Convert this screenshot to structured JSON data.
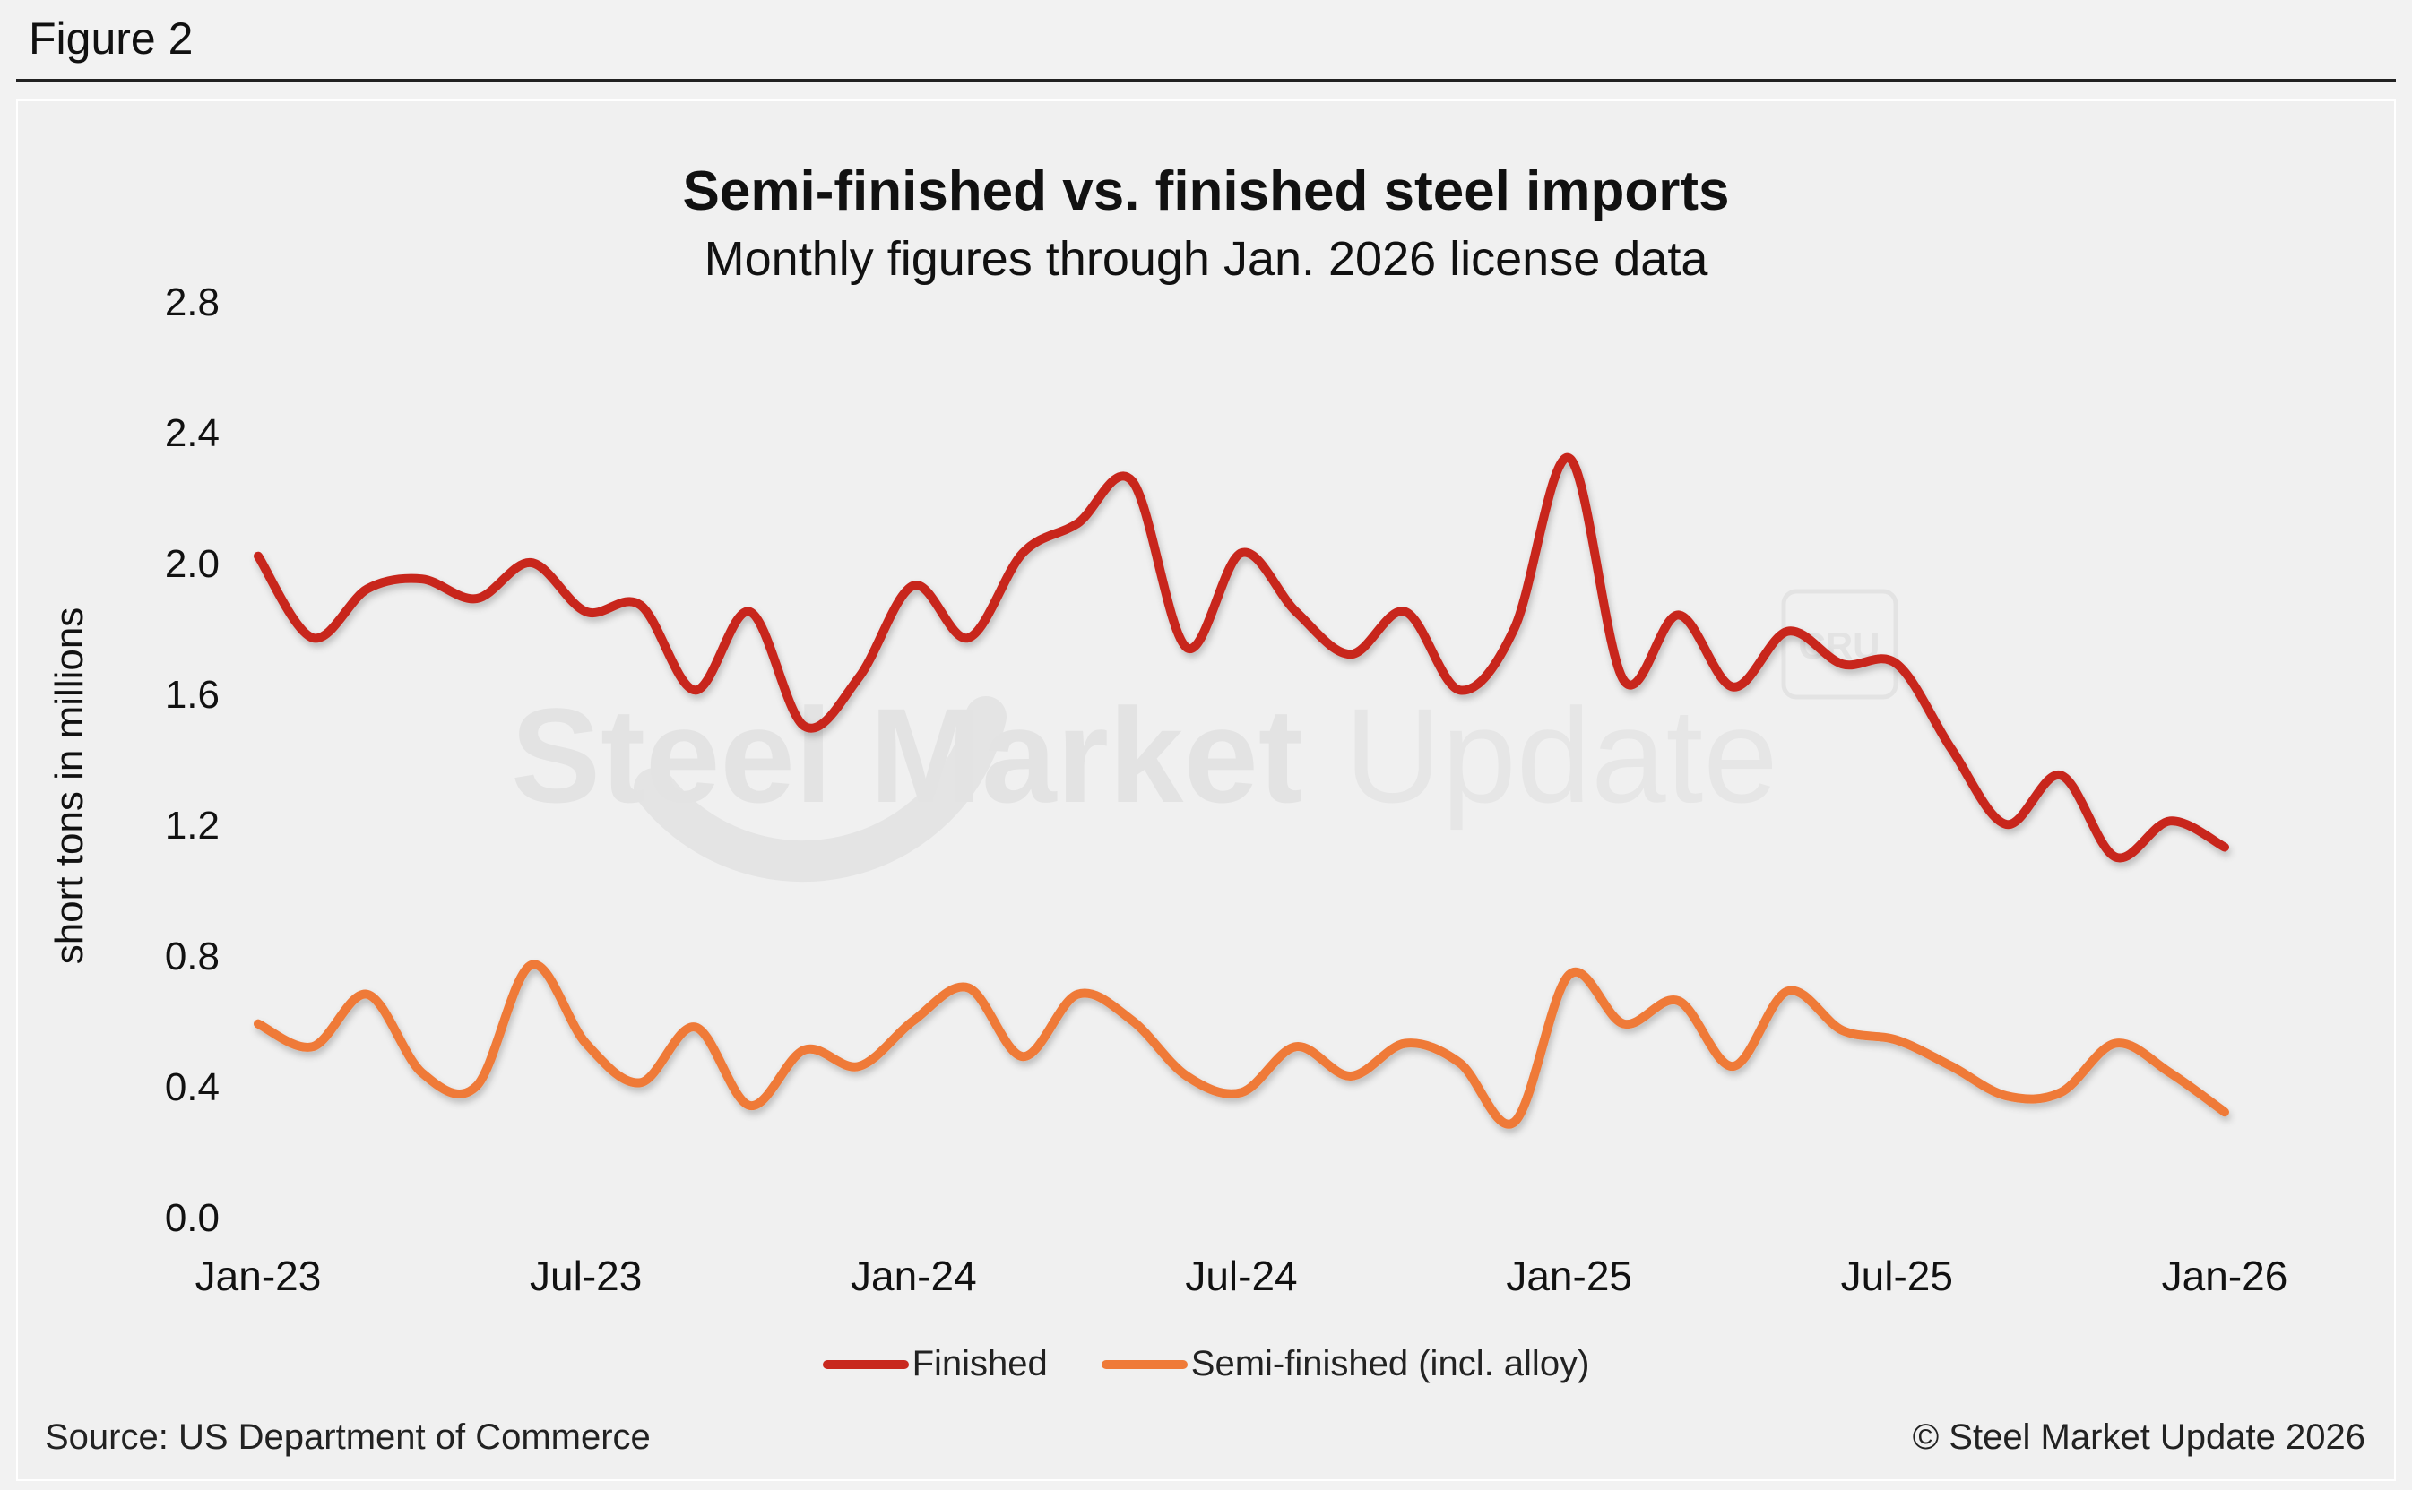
{
  "figure_label": "Figure 2",
  "source": "Source: US Department of Commerce",
  "copyright": "© Steel Market Update 2026",
  "watermark": {
    "text_bold": "Steel Market",
    "text_light": "Update",
    "badge": "CRU"
  },
  "colors": {
    "finished": "#c8281e",
    "semi_finished": "#ef7a38",
    "background": "#f0f0f0"
  },
  "chart_data": {
    "type": "line",
    "title": "Semi-finished vs. finished steel imports",
    "subtitle": "Monthly figures through Jan. 2026 license data",
    "ylabel": "short tons in millions",
    "ylim": [
      0,
      2.8
    ],
    "yticks": [
      "0.0",
      "0.4",
      "0.8",
      "1.2",
      "1.6",
      "2.0",
      "2.4",
      "2.8"
    ],
    "x": [
      "Jan-23",
      "Feb-23",
      "Mar-23",
      "Apr-23",
      "May-23",
      "Jun-23",
      "Jul-23",
      "Aug-23",
      "Sep-23",
      "Oct-23",
      "Nov-23",
      "Dec-23",
      "Jan-24",
      "Feb-24",
      "Mar-24",
      "Apr-24",
      "May-24",
      "Jun-24",
      "Jul-24",
      "Aug-24",
      "Sep-24",
      "Oct-24",
      "Nov-24",
      "Dec-24",
      "Jan-25",
      "Feb-25",
      "Mar-25",
      "Apr-25",
      "May-25",
      "Jun-25",
      "Jul-25",
      "Aug-25",
      "Sep-25",
      "Oct-25",
      "Nov-25",
      "Dec-25",
      "Jan-26"
    ],
    "xticks": [
      "Jan-23",
      "Jul-23",
      "Jan-24",
      "Jul-24",
      "Jan-25",
      "Jul-25",
      "Jan-26"
    ],
    "grid": false,
    "legend_position": "bottom",
    "series": [
      {
        "name": "Finished",
        "values": [
          2.02,
          1.77,
          1.92,
          1.95,
          1.89,
          2.0,
          1.85,
          1.87,
          1.61,
          1.85,
          1.5,
          1.65,
          1.93,
          1.77,
          2.03,
          2.12,
          2.25,
          1.74,
          2.03,
          1.85,
          1.72,
          1.85,
          1.61,
          1.8,
          2.32,
          1.64,
          1.84,
          1.62,
          1.79,
          1.69,
          1.69,
          1.43,
          1.2,
          1.35,
          1.1,
          1.21,
          1.13
        ]
      },
      {
        "name": "Semi-finished (incl. alloy)",
        "values": [
          0.59,
          0.52,
          0.68,
          0.44,
          0.4,
          0.77,
          0.53,
          0.41,
          0.58,
          0.34,
          0.51,
          0.46,
          0.6,
          0.7,
          0.49,
          0.68,
          0.6,
          0.43,
          0.38,
          0.52,
          0.43,
          0.53,
          0.47,
          0.29,
          0.74,
          0.59,
          0.66,
          0.46,
          0.69,
          0.57,
          0.54,
          0.46,
          0.37,
          0.38,
          0.53,
          0.44,
          0.32
        ]
      }
    ]
  }
}
